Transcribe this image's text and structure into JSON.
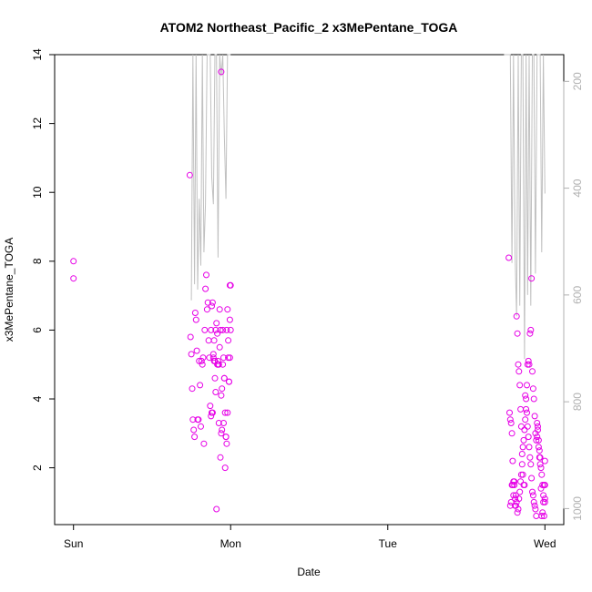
{
  "chart_data": {
    "type": "scatter",
    "title": "ATOM2 Northeast_Pacific_2 x3MePentane_TOGA",
    "xlabel": "Date",
    "ylabel": "x3MePentane_TOGA",
    "x_ticks": [
      "Sun",
      "Mon",
      "Tue",
      "Wed"
    ],
    "x_range_days": [
      -0.12,
      3.12
    ],
    "ylim": [
      0.35,
      14
    ],
    "y_ticks": [
      2,
      4,
      6,
      8,
      10,
      12,
      14
    ],
    "y2_ticks": [
      200,
      400,
      600,
      800,
      1000
    ],
    "y2lim": [
      1030,
      150
    ],
    "grid": false,
    "colors": {
      "points": "#e600e6",
      "profile": "#c0c0c0"
    },
    "series": [
      {
        "values_x_days": [
          0.0,
          0.0,
          0.74,
          0.745,
          0.75,
          0.755,
          0.76,
          0.765,
          0.77,
          0.775,
          0.78,
          0.785,
          0.79,
          0.795,
          0.8,
          0.805,
          0.81,
          0.815,
          0.82,
          0.825,
          0.83,
          0.835,
          0.84,
          0.845,
          0.85,
          0.855,
          0.86,
          0.865,
          0.87,
          0.875,
          0.88,
          0.885,
          0.89,
          0.895,
          0.9,
          0.905,
          0.91,
          0.915,
          0.92,
          0.925,
          0.93,
          0.935,
          0.94,
          0.945,
          0.95,
          0.955,
          0.96,
          0.965,
          0.97,
          0.975,
          0.98,
          0.985,
          0.99,
          0.995,
          1.0,
          1.0,
          0.875,
          0.88,
          0.885,
          0.89,
          0.895,
          0.9,
          0.905,
          0.91,
          0.915,
          0.92,
          0.925,
          0.93,
          0.935,
          0.94,
          0.945,
          0.95,
          0.955,
          0.96,
          0.965,
          0.97,
          0.975,
          0.98,
          0.985,
          0.99,
          0.995,
          0.995
        ],
        "values_y": [
          8.0,
          7.5,
          10.5,
          5.8,
          5.3,
          4.3,
          3.4,
          3.1,
          2.9,
          6.5,
          6.3,
          5.4,
          3.4,
          3.4,
          5.1,
          4.4,
          3.2,
          5.1,
          5.0,
          5.2,
          2.7,
          6.0,
          7.2,
          7.6,
          6.6,
          6.8,
          5.7,
          5.2,
          3.8,
          3.5,
          3.6,
          3.6,
          5.3,
          5.7,
          4.6,
          4.2,
          0.8,
          5.0,
          5.1,
          3.3,
          6.6,
          2.3,
          3.0,
          3.1,
          6.0,
          3.3,
          4.6,
          2.0,
          2.9,
          2.7,
          3.6,
          5.2,
          4.5,
          6.3,
          6.0,
          7.3,
          6.0,
          6.7,
          6.8,
          5.2,
          5.1,
          5.1,
          6.0,
          6.2,
          5.9,
          5.0,
          5.0,
          5.5,
          6.0,
          4.1,
          4.3,
          5.0,
          5.2,
          4.6,
          3.6,
          2.9,
          6.0,
          6.6,
          5.7,
          4.5,
          5.2,
          7.3
        ],
        "x_extra_days": [
          0.94
        ],
        "y_extra": [
          13.5
        ]
      },
      {
        "values_x_days": [
          2.77,
          2.775,
          2.78,
          2.785,
          2.79,
          2.795,
          2.8,
          2.805,
          2.81,
          2.815,
          2.82,
          2.825,
          2.83,
          2.835,
          2.84,
          2.845,
          2.85,
          2.855,
          2.86,
          2.865,
          2.87,
          2.875,
          2.88,
          2.885,
          2.89,
          2.895,
          2.9,
          2.905,
          2.91,
          2.915,
          2.92,
          2.925,
          2.93,
          2.935,
          2.94,
          2.945,
          2.95,
          2.955,
          2.96,
          2.965,
          2.97,
          2.975,
          2.98,
          2.985,
          2.99,
          2.995,
          3.0,
          3.0,
          3.0,
          3.0,
          2.78,
          2.785,
          2.79,
          2.795,
          2.8,
          2.805,
          2.81,
          2.815,
          2.82,
          2.825,
          2.83,
          2.835,
          2.84,
          2.845,
          2.85,
          2.855,
          2.86,
          2.865,
          2.87,
          2.875,
          2.88,
          2.885,
          2.89,
          2.895,
          2.9,
          2.905,
          2.91,
          2.915,
          2.92,
          2.925,
          2.93,
          2.935,
          2.94,
          2.945,
          2.95,
          2.955,
          2.96,
          2.965,
          2.97,
          2.975,
          2.98,
          2.985,
          2.99,
          2.995
        ],
        "values_y": [
          8.1,
          3.6,
          3.4,
          3.3,
          3.0,
          2.2,
          1.6,
          1.5,
          1.1,
          0.9,
          6.4,
          5.9,
          5.0,
          4.8,
          4.4,
          3.7,
          3.2,
          2.4,
          1.8,
          1.5,
          1.5,
          4.1,
          4.0,
          3.6,
          3.2,
          2.9,
          2.6,
          2.3,
          2.1,
          1.7,
          1.3,
          1.2,
          1.0,
          0.9,
          0.8,
          0.6,
          3.3,
          3.1,
          2.8,
          2.5,
          2.3,
          2.0,
          1.8,
          1.5,
          1.2,
          0.6,
          2.2,
          1.5,
          1.1,
          1.0,
          0.9,
          1.0,
          1.5,
          1.5,
          1.2,
          1.6,
          0.9,
          1.2,
          1.0,
          0.7,
          0.8,
          1.1,
          1.3,
          1.6,
          1.8,
          2.1,
          2.6,
          2.8,
          3.1,
          3.4,
          3.7,
          4.4,
          5.0,
          5.1,
          5.0,
          5.9,
          6.0,
          7.5,
          4.8,
          4.3,
          4.0,
          3.5,
          3.0,
          2.8,
          2.9,
          3.2,
          2.6,
          2.3,
          2.1,
          1.4,
          0.6,
          0.7,
          1.0,
          1.5
        ],
        "x_extra_days": [],
        "y_extra": []
      }
    ],
    "profile_y2": [
      {
        "x_days": [
          0.75,
          0.76,
          0.77,
          0.78,
          0.79,
          0.8,
          0.81,
          0.82,
          0.83,
          0.84,
          0.85,
          0.86,
          0.87,
          0.88,
          0.89,
          0.9,
          0.91,
          0.92,
          0.93,
          0.94,
          0.95,
          0.96,
          0.97,
          0.98,
          0.99,
          1.0
        ],
        "y2": [
          610,
          150,
          580,
          150,
          590,
          420,
          545,
          150,
          520,
          430,
          150,
          150,
          150,
          380,
          430,
          150,
          150,
          530,
          150,
          190,
          150,
          300,
          420,
          150,
          150,
          150
        ]
      },
      {
        "x_days": [
          2.74,
          2.75,
          2.76,
          2.77,
          2.78,
          2.79,
          2.8,
          2.81,
          2.82,
          2.83,
          2.84,
          2.85,
          2.86,
          2.87,
          2.88,
          2.89,
          2.9,
          2.91,
          2.92,
          2.93,
          2.94,
          2.95,
          2.96,
          2.97,
          2.98,
          2.99,
          3.0
        ],
        "y2": [
          150,
          150,
          150,
          150,
          150,
          540,
          150,
          520,
          640,
          150,
          620,
          150,
          150,
          720,
          150,
          600,
          150,
          620,
          150,
          150,
          560,
          150,
          150,
          150,
          520,
          150,
          410
        ]
      }
    ]
  }
}
